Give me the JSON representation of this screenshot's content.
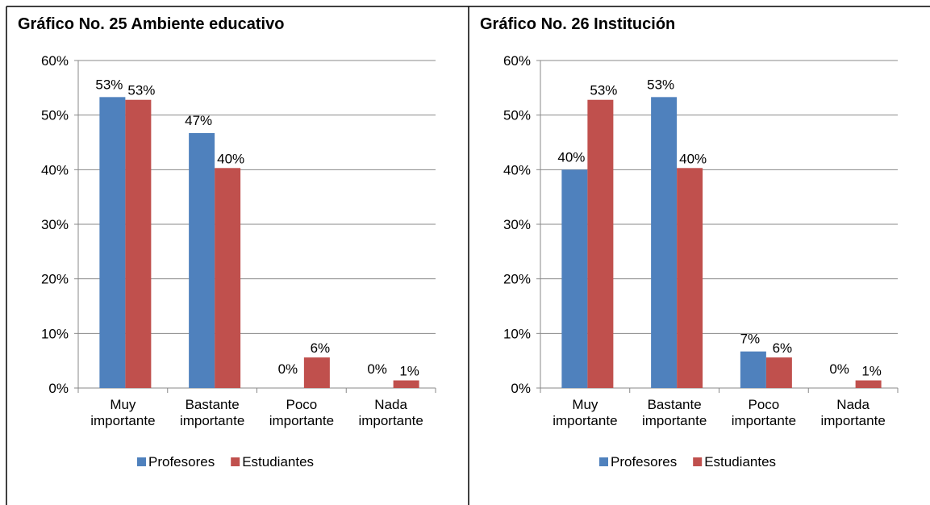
{
  "chart_data": [
    {
      "type": "bar",
      "title": "Gráfico No. 25 Ambiente educativo",
      "categories": [
        "Muy importante",
        "Bastante importante",
        "Poco importante",
        "Nada importante"
      ],
      "series": [
        {
          "name": "Profesores",
          "color": "#4f81bd",
          "values": [
            53.3,
            46.7,
            0,
            0
          ],
          "value_labels": [
            "53%",
            "47%",
            "0%",
            "0%"
          ]
        },
        {
          "name": "Estudiantes",
          "color": "#c0504d",
          "values": [
            52.8,
            40.3,
            5.6,
            1.4
          ],
          "value_labels": [
            "53%",
            "40%",
            "6%",
            "1%"
          ]
        }
      ],
      "ylim": [
        0,
        60
      ],
      "yticks": [
        {
          "value": 0,
          "label": "0%"
        },
        {
          "value": 10,
          "label": "10%"
        },
        {
          "value": 20,
          "label": "20%"
        },
        {
          "value": 30,
          "label": "30%"
        },
        {
          "value": 40,
          "label": "40%"
        },
        {
          "value": 50,
          "label": "50%"
        },
        {
          "value": 60,
          "label": "60%"
        }
      ],
      "grid": true,
      "legend": "bottom"
    },
    {
      "type": "bar",
      "title": "Gráfico No. 26 Institución",
      "categories": [
        "Muy importante",
        "Bastante importante",
        "Poco importante",
        "Nada importante"
      ],
      "series": [
        {
          "name": "Profesores",
          "color": "#4f81bd",
          "values": [
            40,
            53.3,
            6.7,
            0
          ],
          "value_labels": [
            "40%",
            "53%",
            "7%",
            "0%"
          ]
        },
        {
          "name": "Estudiantes",
          "color": "#c0504d",
          "values": [
            52.8,
            40.3,
            5.6,
            1.4
          ],
          "value_labels": [
            "53%",
            "40%",
            "6%",
            "1%"
          ]
        }
      ],
      "ylim": [
        0,
        60
      ],
      "yticks": [
        {
          "value": 0,
          "label": "0%"
        },
        {
          "value": 10,
          "label": "10%"
        },
        {
          "value": 20,
          "label": "20%"
        },
        {
          "value": 30,
          "label": "30%"
        },
        {
          "value": 40,
          "label": "40%"
        },
        {
          "value": 50,
          "label": "50%"
        },
        {
          "value": 60,
          "label": "60%"
        }
      ],
      "grid": true,
      "legend": "bottom"
    }
  ]
}
